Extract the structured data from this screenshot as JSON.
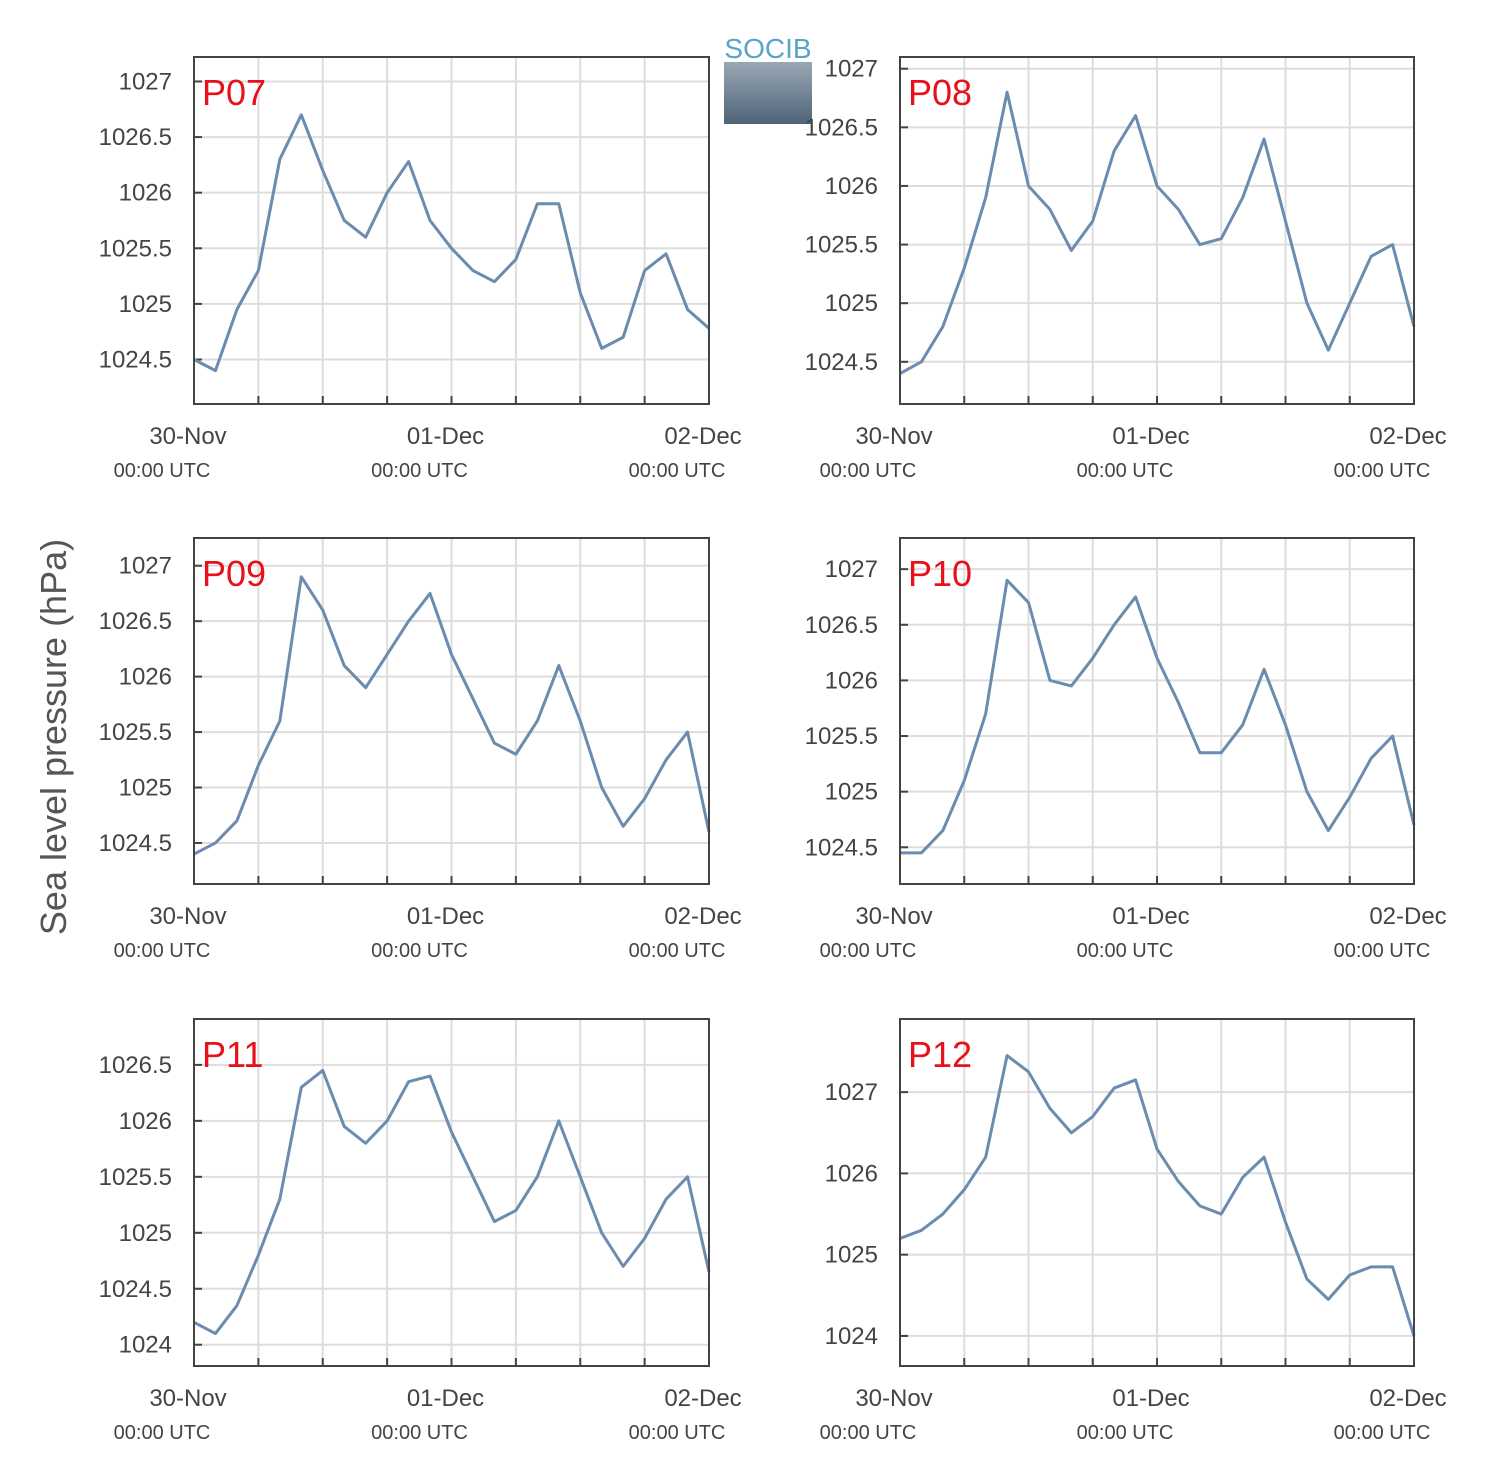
{
  "ylabel": "Sea level pressure (hPa)",
  "logo": "SOCIB",
  "chart_data": [
    {
      "type": "line",
      "title": "P07",
      "color": "#6b8cae",
      "grid": true,
      "x": [
        0,
        2,
        4,
        6,
        8,
        10,
        12,
        14,
        16,
        18,
        20,
        22,
        24,
        26,
        28,
        30,
        32,
        34,
        36,
        38,
        40,
        42,
        44,
        46,
        48
      ],
      "values": [
        1024.5,
        1024.4,
        1024.95,
        1025.3,
        1026.3,
        1026.7,
        1026.2,
        1025.75,
        1025.6,
        1026.0,
        1026.28,
        1025.75,
        1025.5,
        1025.3,
        1025.2,
        1025.4,
        1025.9,
        1025.9,
        1025.1,
        1024.6,
        1024.7,
        1025.3,
        1025.45,
        1024.95,
        1024.78
      ],
      "xlim": [
        0,
        48
      ],
      "ylim": [
        1024.1,
        1027.22
      ],
      "xticks": [
        {
          "value": 0,
          "label": "30-Nov",
          "time": "00:00 UTC"
        },
        {
          "value": 6,
          "label": null
        },
        {
          "value": 12,
          "label": null
        },
        {
          "value": 18,
          "label": null
        },
        {
          "value": 24,
          "label": "01-Dec",
          "time": "00:00 UTC"
        },
        {
          "value": 30,
          "label": null
        },
        {
          "value": 36,
          "label": null
        },
        {
          "value": 42,
          "label": null
        },
        {
          "value": 48,
          "label": "02-Dec",
          "time": "00:00 UTC"
        }
      ],
      "yticks": [
        1024.5,
        1025,
        1025.5,
        1026,
        1026.5,
        1027
      ]
    },
    {
      "type": "line",
      "title": "P08",
      "color": "#6b8cae",
      "grid": true,
      "x": [
        0,
        2,
        4,
        6,
        8,
        10,
        12,
        14,
        16,
        18,
        20,
        22,
        24,
        26,
        28,
        30,
        32,
        34,
        36,
        38,
        40,
        42,
        44,
        46,
        48
      ],
      "values": [
        1024.4,
        1024.5,
        1024.8,
        1025.3,
        1025.9,
        1026.8,
        1026.0,
        1025.8,
        1025.45,
        1025.7,
        1026.3,
        1026.6,
        1026.0,
        1025.8,
        1025.5,
        1025.55,
        1025.9,
        1026.4,
        1025.7,
        1025.0,
        1024.6,
        1025.0,
        1025.4,
        1025.5,
        1024.8
      ],
      "xlim": [
        0,
        48
      ],
      "ylim": [
        1024.14,
        1027.1
      ],
      "xticks": [
        {
          "value": 0,
          "label": "30-Nov",
          "time": "00:00 UTC"
        },
        {
          "value": 6,
          "label": null
        },
        {
          "value": 12,
          "label": null
        },
        {
          "value": 18,
          "label": null
        },
        {
          "value": 24,
          "label": "01-Dec",
          "time": "00:00 UTC"
        },
        {
          "value": 30,
          "label": null
        },
        {
          "value": 36,
          "label": null
        },
        {
          "value": 42,
          "label": null
        },
        {
          "value": 48,
          "label": "02-Dec",
          "time": "00:00 UTC"
        }
      ],
      "yticks": [
        1024.5,
        1025,
        1025.5,
        1026,
        1026.5,
        1027
      ]
    },
    {
      "type": "line",
      "title": "P09",
      "color": "#6b8cae",
      "grid": true,
      "x": [
        0,
        2,
        4,
        6,
        8,
        10,
        12,
        14,
        16,
        18,
        20,
        22,
        24,
        26,
        28,
        30,
        32,
        34,
        36,
        38,
        40,
        42,
        44,
        46,
        48
      ],
      "values": [
        1024.4,
        1024.5,
        1024.7,
        1025.2,
        1025.6,
        1026.9,
        1026.6,
        1026.1,
        1025.9,
        1026.2,
        1026.5,
        1026.75,
        1026.2,
        1025.8,
        1025.4,
        1025.3,
        1025.6,
        1026.1,
        1025.6,
        1025.0,
        1024.65,
        1024.9,
        1025.25,
        1025.5,
        1024.6
      ],
      "xlim": [
        0,
        48
      ],
      "ylim": [
        1024.13,
        1027.25
      ],
      "xticks": [
        {
          "value": 0,
          "label": "30-Nov",
          "time": "00:00 UTC"
        },
        {
          "value": 6,
          "label": null
        },
        {
          "value": 12,
          "label": null
        },
        {
          "value": 18,
          "label": null
        },
        {
          "value": 24,
          "label": "01-Dec",
          "time": "00:00 UTC"
        },
        {
          "value": 30,
          "label": null
        },
        {
          "value": 36,
          "label": null
        },
        {
          "value": 42,
          "label": null
        },
        {
          "value": 48,
          "label": "02-Dec",
          "time": "00:00 UTC"
        }
      ],
      "yticks": [
        1024.5,
        1025,
        1025.5,
        1026,
        1026.5,
        1027
      ]
    },
    {
      "type": "line",
      "title": "P10",
      "color": "#6b8cae",
      "grid": true,
      "x": [
        0,
        2,
        4,
        6,
        8,
        10,
        12,
        14,
        16,
        18,
        20,
        22,
        24,
        26,
        28,
        30,
        32,
        34,
        36,
        38,
        40,
        42,
        44,
        46,
        48
      ],
      "values": [
        1024.45,
        1024.45,
        1024.65,
        1025.1,
        1025.7,
        1026.9,
        1026.7,
        1026.0,
        1025.95,
        1026.2,
        1026.5,
        1026.75,
        1026.2,
        1025.8,
        1025.35,
        1025.35,
        1025.6,
        1026.1,
        1025.6,
        1025.0,
        1024.65,
        1024.95,
        1025.3,
        1025.5,
        1024.7
      ],
      "xlim": [
        0,
        48
      ],
      "ylim": [
        1024.17,
        1027.28
      ],
      "xticks": [
        {
          "value": 0,
          "label": "30-Nov",
          "time": "00:00 UTC"
        },
        {
          "value": 6,
          "label": null
        },
        {
          "value": 12,
          "label": null
        },
        {
          "value": 18,
          "label": null
        },
        {
          "value": 24,
          "label": "01-Dec",
          "time": "00:00 UTC"
        },
        {
          "value": 30,
          "label": null
        },
        {
          "value": 36,
          "label": null
        },
        {
          "value": 42,
          "label": null
        },
        {
          "value": 48,
          "label": "02-Dec",
          "time": "00:00 UTC"
        }
      ],
      "yticks": [
        1024.5,
        1025,
        1025.5,
        1026,
        1026.5,
        1027
      ]
    },
    {
      "type": "line",
      "title": "P11",
      "color": "#6b8cae",
      "grid": true,
      "x": [
        0,
        2,
        4,
        6,
        8,
        10,
        12,
        14,
        16,
        18,
        20,
        22,
        24,
        26,
        28,
        30,
        32,
        34,
        36,
        38,
        40,
        42,
        44,
        46,
        48
      ],
      "values": [
        1024.2,
        1024.1,
        1024.35,
        1024.8,
        1025.3,
        1026.3,
        1026.45,
        1025.95,
        1025.8,
        1026.0,
        1026.35,
        1026.4,
        1025.9,
        1025.5,
        1025.1,
        1025.2,
        1025.5,
        1026.0,
        1025.5,
        1025.0,
        1024.7,
        1024.95,
        1025.3,
        1025.5,
        1024.65
      ],
      "xlim": [
        0,
        48
      ],
      "ylim": [
        1023.81,
        1026.91
      ],
      "xticks": [
        {
          "value": 0,
          "label": "30-Nov",
          "time": "00:00 UTC"
        },
        {
          "value": 6,
          "label": null
        },
        {
          "value": 12,
          "label": null
        },
        {
          "value": 18,
          "label": null
        },
        {
          "value": 24,
          "label": "01-Dec",
          "time": "00:00 UTC"
        },
        {
          "value": 30,
          "label": null
        },
        {
          "value": 36,
          "label": null
        },
        {
          "value": 42,
          "label": null
        },
        {
          "value": 48,
          "label": "02-Dec",
          "time": "00:00 UTC"
        }
      ],
      "yticks": [
        1024,
        1024.5,
        1025,
        1025.5,
        1026,
        1026.5
      ]
    },
    {
      "type": "line",
      "title": "P12",
      "color": "#6b8cae",
      "grid": true,
      "x": [
        0,
        2,
        4,
        6,
        8,
        10,
        12,
        14,
        16,
        18,
        20,
        22,
        24,
        26,
        28,
        30,
        32,
        34,
        36,
        38,
        40,
        42,
        44,
        46,
        48
      ],
      "values": [
        1025.2,
        1025.3,
        1025.5,
        1025.8,
        1026.2,
        1027.45,
        1027.25,
        1026.8,
        1026.5,
        1026.7,
        1027.05,
        1027.15,
        1026.3,
        1025.9,
        1025.6,
        1025.5,
        1025.95,
        1026.2,
        1025.4,
        1024.7,
        1024.45,
        1024.75,
        1024.85,
        1024.85,
        1024.0
      ],
      "xlim": [
        0,
        48
      ],
      "ylim": [
        1023.63,
        1027.9
      ],
      "xticks": [
        {
          "value": 0,
          "label": "30-Nov",
          "time": "00:00 UTC"
        },
        {
          "value": 6,
          "label": null
        },
        {
          "value": 12,
          "label": null
        },
        {
          "value": 18,
          "label": null
        },
        {
          "value": 24,
          "label": "01-Dec",
          "time": "00:00 UTC"
        },
        {
          "value": 30,
          "label": null
        },
        {
          "value": 36,
          "label": null
        },
        {
          "value": 42,
          "label": null
        },
        {
          "value": 48,
          "label": "02-Dec",
          "time": "00:00 UTC"
        }
      ],
      "yticks": [
        1024,
        1025,
        1026,
        1027
      ]
    }
  ]
}
